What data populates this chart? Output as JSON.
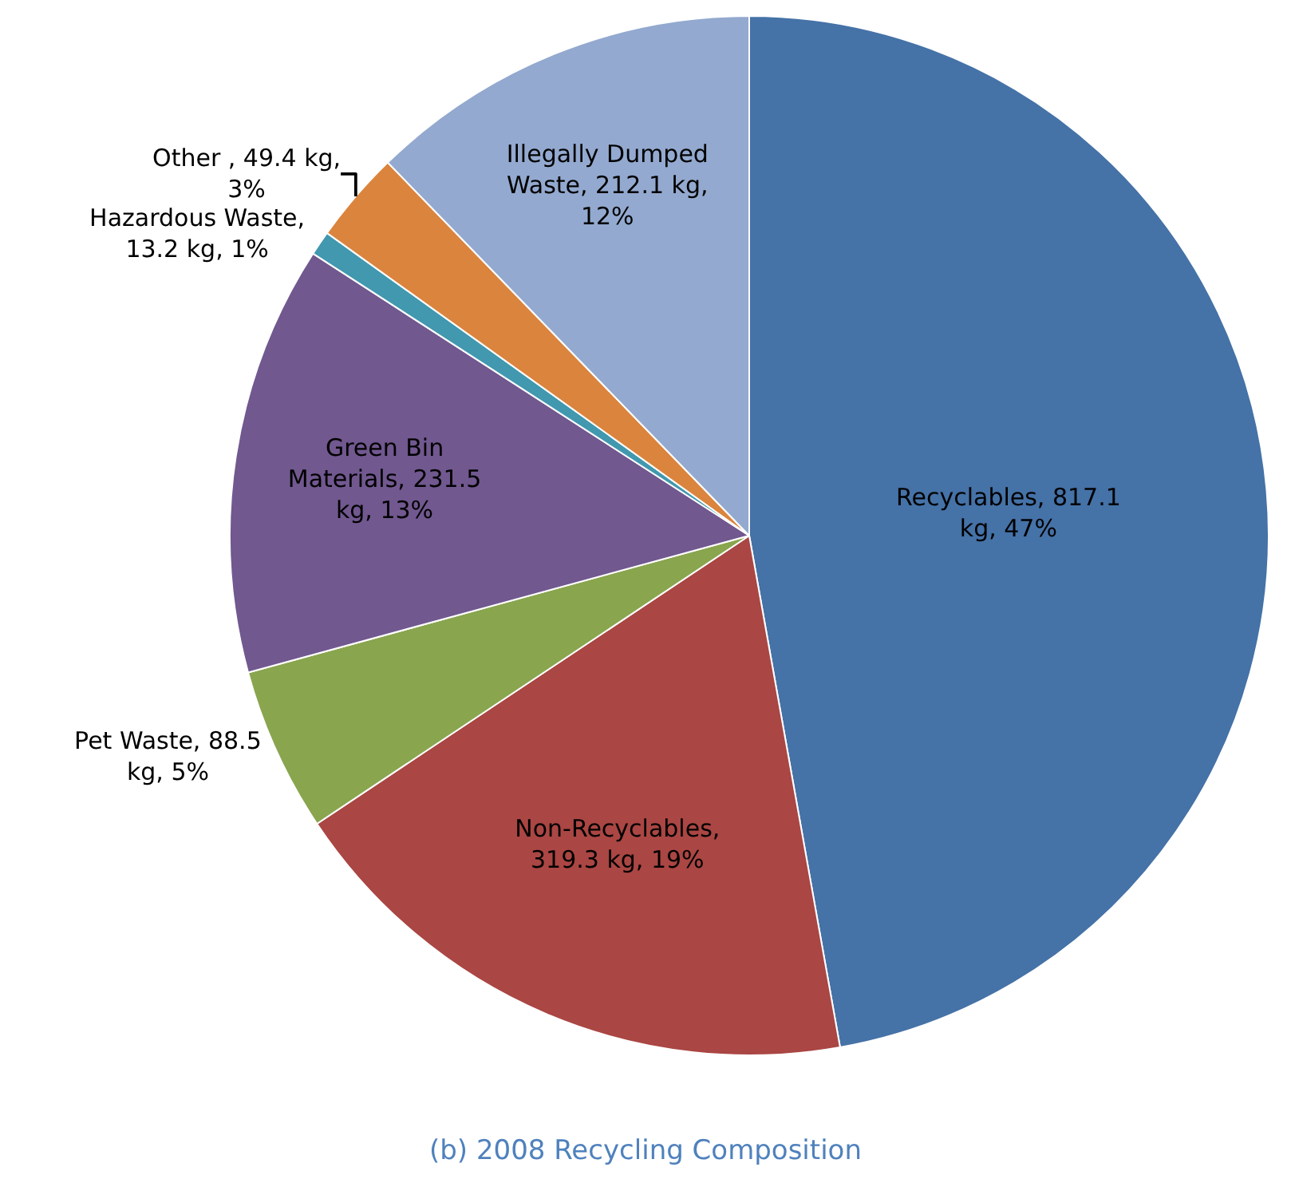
{
  "chart_data": {
    "type": "pie",
    "title": "(b) 2008 Recycling Composition",
    "categories": [
      "Recyclables, 817.1 kg, 47%",
      "Non-Recyclables, 319.3 kg, 19%",
      "Pet Waste, 88.5 kg, 5%",
      "Green Bin Materials, 231.5 kg, 13%",
      "Hazardous Waste, 13.2 kg, 1%",
      "Other , 49.4 kg, 3%",
      "Illegally Dumped Waste, 212.1 kg, 12%"
    ],
    "values": [
      817.1,
      319.3,
      88.5,
      231.5,
      13.2,
      49.4,
      212.1
    ],
    "colors": [
      "#4572a7",
      "#aa4643",
      "#89a54e",
      "#71588f",
      "#4198af",
      "#db843d",
      "#93a9cf"
    ]
  }
}
